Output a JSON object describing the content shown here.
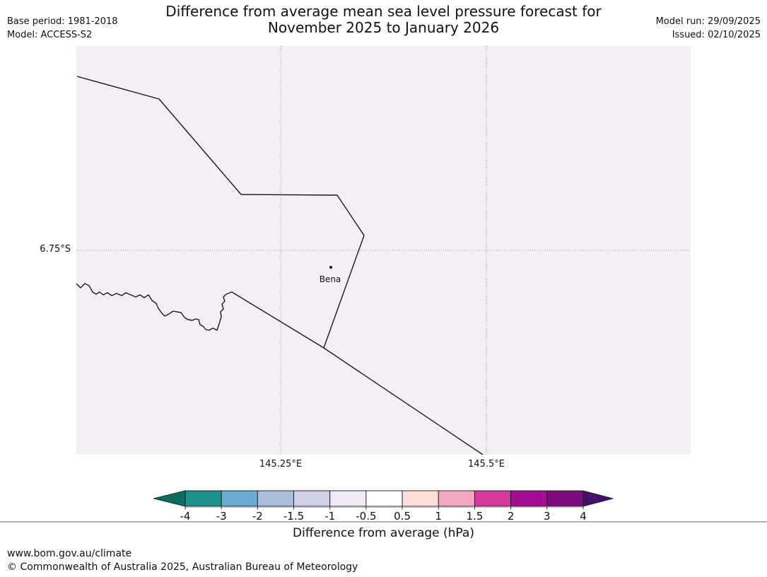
{
  "header": {
    "base_period": "Base period: 1981-2018",
    "model": "Model: ACCESS-S2",
    "title_line1": "Difference from average mean sea level pressure forecast for",
    "title_line2": "November 2025 to January 2026",
    "model_run": "Model run: 29/09/2025",
    "issued": "Issued: 02/10/2025"
  },
  "map": {
    "background": "#f5eef5",
    "place_label": "Bena",
    "lat_label": "6.75°S",
    "lon_label_1": "145.25°E",
    "lon_label_2": "145.5°E"
  },
  "colorbar": {
    "caption": "Difference from average (hPa)",
    "tick_labels": [
      "-4",
      "-3",
      "-2",
      "-1.5",
      "-1",
      "-0.5",
      "0.5",
      "1",
      "1.5",
      "2",
      "3",
      "4"
    ],
    "segment_colors": [
      "#1e9090",
      "#66abd2",
      "#a9bddc",
      "#cfd0e3",
      "#f1e9f3",
      "#ffffff",
      "#fcdfda",
      "#f4a5c0",
      "#d6389c",
      "#a40e93",
      "#7b0d80"
    ],
    "left_arrow_color": "#0b6c5f",
    "right_arrow_color": "#45106b",
    "outline_color": "#1a1a1a"
  },
  "footer": {
    "url": "www.bom.gov.au/climate",
    "copyright": "© Commonwealth of Australia 2025, Australian Bureau of Meteorology"
  },
  "chart_data": {
    "type": "map",
    "title": "Difference from average mean sea level pressure forecast for November 2025 to January 2026",
    "model": "ACCESS-S2",
    "base_period": "1981-2018",
    "model_run_date": "29/09/2025",
    "issued_date": "02/10/2025",
    "variable": "Difference from average mean sea level pressure",
    "units": "hPa",
    "scale_breakpoints": [
      -4,
      -3,
      -2,
      -1.5,
      -1,
      -0.5,
      0.5,
      1,
      1.5,
      2,
      3,
      4
    ],
    "map_fill_value_range_hPa": [
      -1,
      -0.5
    ],
    "gridlines": {
      "latitude": [
        "6.75°S"
      ],
      "longitude": [
        "145.25°E",
        "145.5°E"
      ]
    },
    "places": [
      {
        "name": "Bena",
        "approx_lon_e": 145.31,
        "approx_lat_s": 6.77
      }
    ]
  }
}
